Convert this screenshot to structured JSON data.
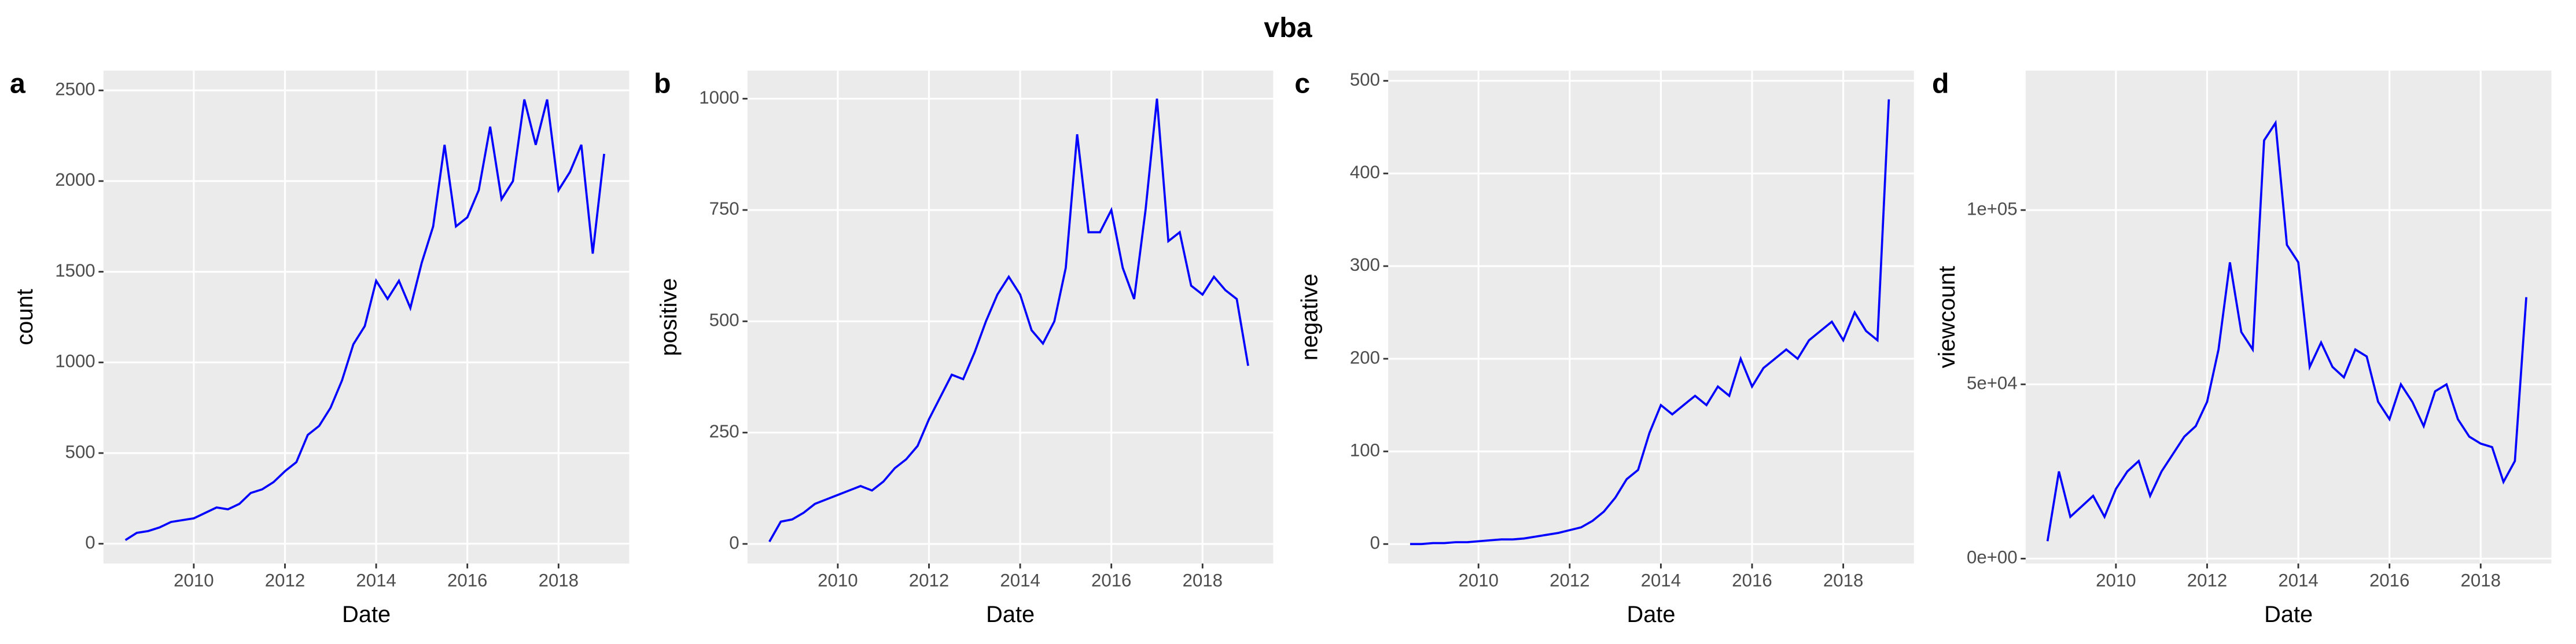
{
  "title": "vba",
  "chart_data": [
    {
      "type": "line",
      "label": "a",
      "x_label": "Date",
      "y_label": "count",
      "color": "#0000ff",
      "grid": true,
      "xlim": [
        2008.02,
        2019.55
      ],
      "xticks": [
        2010,
        2012,
        2014,
        2016,
        2018
      ],
      "ylim": [
        -109,
        2609
      ],
      "yticks": [
        0,
        500,
        1000,
        1500,
        2000,
        2500
      ],
      "x": [
        2008.5,
        2008.75,
        2009,
        2009.25,
        2009.5,
        2009.75,
        2010,
        2010.25,
        2010.5,
        2010.75,
        2011,
        2011.25,
        2011.5,
        2011.75,
        2012,
        2012.25,
        2012.5,
        2012.75,
        2013,
        2013.25,
        2013.5,
        2013.75,
        2014,
        2014.25,
        2014.5,
        2014.75,
        2015,
        2015.25,
        2015.5,
        2015.75,
        2016,
        2016.25,
        2016.5,
        2016.75,
        2017,
        2017.25,
        2017.5,
        2017.75,
        2018,
        2018.25,
        2018.5,
        2018.75,
        2019
      ],
      "values": [
        20,
        60,
        70,
        90,
        120,
        130,
        140,
        170,
        200,
        190,
        220,
        280,
        300,
        340,
        400,
        450,
        600,
        650,
        750,
        900,
        1100,
        1200,
        1450,
        1350,
        1450,
        1300,
        1550,
        1750,
        2200,
        1750,
        1800,
        1950,
        2300,
        1900,
        2000,
        2450,
        2200,
        2450,
        1950,
        2050,
        2200,
        1600,
        2150
      ]
    },
    {
      "type": "line",
      "label": "b",
      "x_label": "Date",
      "y_label": "positive",
      "color": "#0000ff",
      "grid": true,
      "xlim": [
        2008.02,
        2019.55
      ],
      "xticks": [
        2010,
        2012,
        2014,
        2016,
        2018
      ],
      "ylim": [
        -44,
        1063
      ],
      "yticks": [
        0,
        250,
        500,
        750,
        1000
      ],
      "x": [
        2008.5,
        2008.75,
        2009,
        2009.25,
        2009.5,
        2009.75,
        2010,
        2010.25,
        2010.5,
        2010.75,
        2011,
        2011.25,
        2011.5,
        2011.75,
        2012,
        2012.25,
        2012.5,
        2012.75,
        2013,
        2013.25,
        2013.5,
        2013.75,
        2014,
        2014.25,
        2014.5,
        2014.75,
        2015,
        2015.25,
        2015.5,
        2015.75,
        2016,
        2016.25,
        2016.5,
        2016.75,
        2017,
        2017.25,
        2017.5,
        2017.75,
        2018,
        2018.25,
        2018.5,
        2018.75,
        2019
      ],
      "values": [
        5,
        50,
        55,
        70,
        90,
        100,
        110,
        120,
        130,
        120,
        140,
        170,
        190,
        220,
        280,
        330,
        380,
        370,
        430,
        500,
        560,
        600,
        560,
        480,
        450,
        500,
        620,
        920,
        700,
        700,
        750,
        620,
        550,
        750,
        1000,
        680,
        700,
        580,
        560,
        600,
        570,
        550,
        400
      ]
    },
    {
      "type": "line",
      "label": "c",
      "x_label": "Date",
      "y_label": "negative",
      "color": "#0000ff",
      "grid": true,
      "xlim": [
        2008.02,
        2019.55
      ],
      "xticks": [
        2010,
        2012,
        2014,
        2016,
        2018
      ],
      "ylim": [
        -21,
        511
      ],
      "yticks": [
        0,
        100,
        200,
        300,
        400,
        500
      ],
      "x": [
        2008.5,
        2008.75,
        2009,
        2009.25,
        2009.5,
        2009.75,
        2010,
        2010.25,
        2010.5,
        2010.75,
        2011,
        2011.25,
        2011.5,
        2011.75,
        2012,
        2012.25,
        2012.5,
        2012.75,
        2013,
        2013.25,
        2013.5,
        2013.75,
        2014,
        2014.25,
        2014.5,
        2014.75,
        2015,
        2015.25,
        2015.5,
        2015.75,
        2016,
        2016.25,
        2016.5,
        2016.75,
        2017,
        2017.25,
        2017.5,
        2017.75,
        2018,
        2018.25,
        2018.5,
        2018.75,
        2019
      ],
      "values": [
        0,
        0,
        1,
        1,
        2,
        2,
        3,
        4,
        5,
        5,
        6,
        8,
        10,
        12,
        15,
        18,
        25,
        35,
        50,
        70,
        80,
        120,
        150,
        140,
        150,
        160,
        150,
        170,
        160,
        200,
        170,
        190,
        200,
        210,
        200,
        220,
        230,
        240,
        220,
        250,
        230,
        220,
        480
      ]
    },
    {
      "type": "line",
      "label": "d",
      "x_label": "Date",
      "y_label": "viewcount",
      "color": "#0000ff",
      "grid": true,
      "xlim": [
        2008.02,
        2019.55
      ],
      "xticks": [
        2010,
        2012,
        2014,
        2016,
        2018
      ],
      "ylim": [
        -1400,
        140000
      ],
      "yticks": [
        {
          "value": 0,
          "label": "0e+00"
        },
        {
          "value": 50000,
          "label": "5e+04"
        },
        {
          "value": 100000,
          "label": "1e+05"
        }
      ],
      "x": [
        2008.5,
        2008.75,
        2009,
        2009.25,
        2009.5,
        2009.75,
        2010,
        2010.25,
        2010.5,
        2010.75,
        2011,
        2011.25,
        2011.5,
        2011.75,
        2012,
        2012.25,
        2012.5,
        2012.75,
        2013,
        2013.25,
        2013.5,
        2013.75,
        2014,
        2014.25,
        2014.5,
        2014.75,
        2015,
        2015.25,
        2015.5,
        2015.75,
        2016,
        2016.25,
        2016.5,
        2016.75,
        2017,
        2017.25,
        2017.5,
        2017.75,
        2018,
        2018.25,
        2018.5,
        2018.75,
        2019
      ],
      "values": [
        5000,
        25000,
        12000,
        15000,
        18000,
        12000,
        20000,
        25000,
        28000,
        18000,
        25000,
        30000,
        35000,
        38000,
        45000,
        60000,
        85000,
        65000,
        60000,
        120000,
        125000,
        90000,
        85000,
        55000,
        62000,
        55000,
        52000,
        60000,
        58000,
        45000,
        40000,
        50000,
        45000,
        38000,
        48000,
        50000,
        40000,
        35000,
        33000,
        32000,
        22000,
        28000,
        75000
      ]
    }
  ]
}
